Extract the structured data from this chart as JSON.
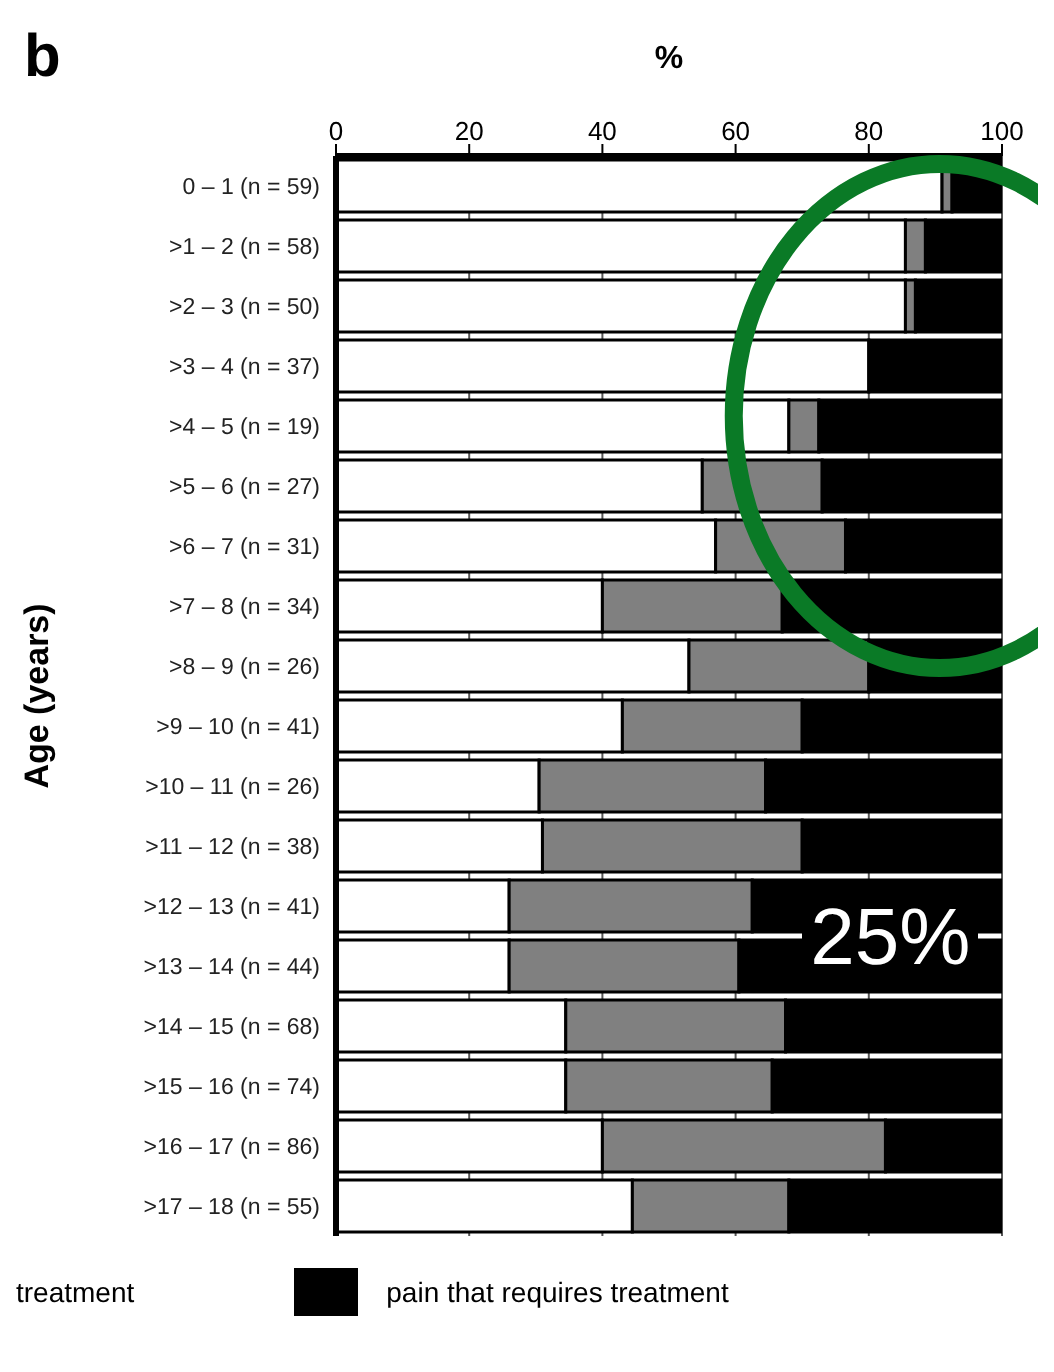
{
  "chart_data": {
    "type": "bar",
    "orientation": "horizontal",
    "stacked": true,
    "xlabel": "%",
    "ylabel": "Age (years)",
    "categories": [
      "0 – 1 (n = 59)",
      ">1 – 2 (n = 58)",
      ">2 – 3 (n = 50)",
      ">3 – 4 (n = 37)",
      ">4 – 5 (n = 19)",
      ">5 – 6 (n = 27)",
      ">6 – 7 (n = 31)",
      ">7 – 8 (n = 34)",
      ">8 – 9 (n = 26)",
      ">9 – 10 (n = 41)",
      ">10 – 11 (n = 26)",
      ">11 – 12 (n = 38)",
      ">12 – 13 (n = 41)",
      ">13 – 14 (n = 44)",
      ">14 – 15 (n = 68)",
      ">15 – 16 (n = 74)",
      ">16 – 17 (n = 86)",
      ">17 – 18 (n = 55)"
    ],
    "series": [
      {
        "color": "#ffffff",
        "values": [
          91,
          85.5,
          85.5,
          80,
          68,
          55,
          57,
          40,
          53,
          43,
          30.5,
          31,
          26,
          26,
          34.5,
          34.5,
          40,
          44.5
        ]
      },
      {
        "color": "#808080",
        "values": [
          1.5,
          3,
          1.5,
          0,
          4.5,
          18,
          19.5,
          27,
          27,
          27,
          34,
          39,
          36.5,
          34.5,
          33,
          31,
          42.5,
          23.5
        ]
      },
      {
        "name": "pain that requires treatment",
        "color": "#000000",
        "values": [
          7.5,
          11.5,
          13,
          20,
          27.5,
          27,
          23.5,
          33,
          20,
          30,
          35.5,
          30,
          37.5,
          39.5,
          32.5,
          34.5,
          17.5,
          32
        ]
      }
    ],
    "xlim": [
      0,
      100
    ],
    "xticks": [
      0,
      20,
      40,
      60,
      80,
      100
    ],
    "grid": "x",
    "legend": "bottom",
    "annotations": [
      "b",
      "25%",
      "treatment"
    ]
  }
}
